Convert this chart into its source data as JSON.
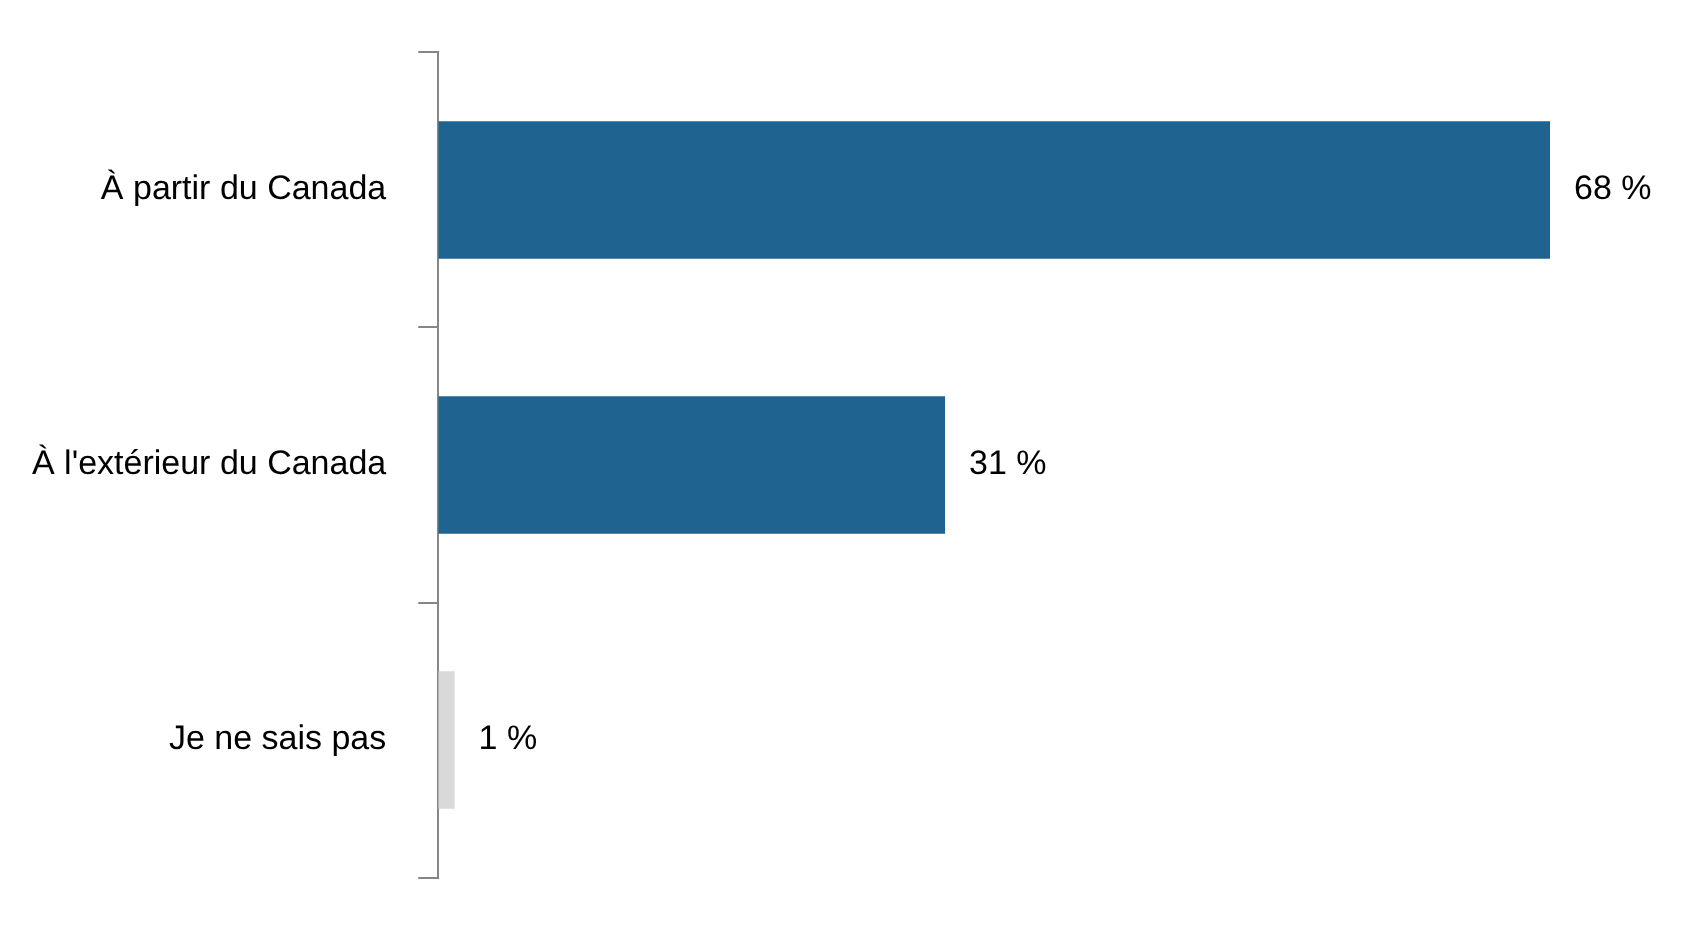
{
  "chart_data": {
    "type": "bar",
    "orientation": "horizontal",
    "tick_labels": "y",
    "categories": [
      "À partir du Canada",
      "À l'extérieur du Canada",
      "Je ne sais pas"
    ],
    "values": [
      68,
      31,
      1
    ],
    "value_labels": [
      "68 %",
      "31 %",
      "1 %"
    ],
    "colors": [
      "#1f6391",
      "#1f6391",
      "#d9d9d9"
    ],
    "legend": false
  }
}
